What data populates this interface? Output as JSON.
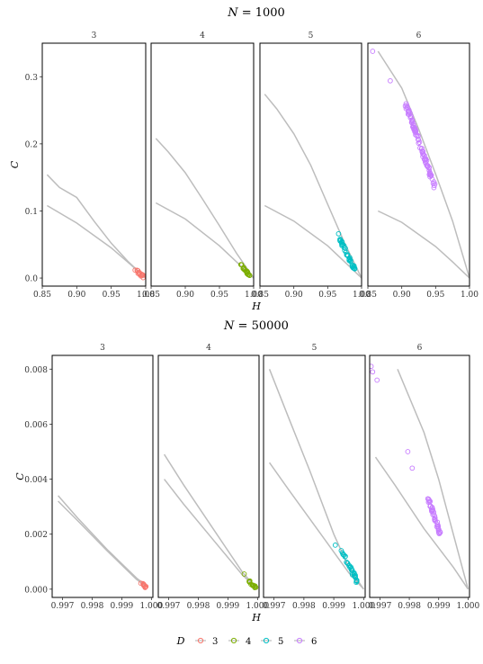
{
  "chart_data": [
    {
      "type": "scatter",
      "title": "N = 1000",
      "title_parts": {
        "var": "N",
        "rest": " = 1000"
      },
      "xlabel": "H",
      "ylabel": "C",
      "xlim": [
        0.85,
        1.0
      ],
      "ylim": [
        -0.012,
        0.35
      ],
      "xticks": [
        0.85,
        0.9,
        0.95,
        1.0
      ],
      "xtick_labels": [
        "0.85",
        "0.90",
        "0.95",
        "1.00"
      ],
      "yticks": [
        0.0,
        0.1,
        0.2,
        0.3
      ],
      "ytick_labels": [
        "0.0",
        "0.1",
        "0.2",
        "0.3"
      ],
      "panels": [
        {
          "label": "3",
          "series": "3",
          "upper_curve": [
            [
              0.857,
              0.154
            ],
            [
              0.875,
              0.135
            ],
            [
              0.9,
              0.12
            ],
            [
              0.925,
              0.085
            ],
            [
              0.95,
              0.052
            ],
            [
              0.975,
              0.024
            ],
            [
              1.0,
              0.0
            ]
          ],
          "lower_curve": [
            [
              0.857,
              0.108
            ],
            [
              0.9,
              0.082
            ],
            [
              0.95,
              0.045
            ],
            [
              0.975,
              0.023
            ],
            [
              1.0,
              0.0
            ]
          ],
          "points_band": {
            "x1": 0.986,
            "y1": 0.012,
            "x2": 0.997,
            "y2": 0.002,
            "n": 16
          }
        },
        {
          "label": "4",
          "series": "4",
          "upper_curve": [
            [
              0.857,
              0.208
            ],
            [
              0.875,
              0.188
            ],
            [
              0.9,
              0.157
            ],
            [
              0.925,
              0.118
            ],
            [
              0.95,
              0.078
            ],
            [
              0.975,
              0.037
            ],
            [
              1.0,
              0.0
            ]
          ],
          "lower_curve": [
            [
              0.857,
              0.112
            ],
            [
              0.9,
              0.088
            ],
            [
              0.95,
              0.048
            ],
            [
              0.975,
              0.024
            ],
            [
              1.0,
              0.0
            ]
          ],
          "points_band": {
            "x1": 0.982,
            "y1": 0.02,
            "x2": 0.995,
            "y2": 0.001,
            "n": 22
          }
        },
        {
          "label": "5",
          "series": "5",
          "upper_curve": [
            [
              0.857,
              0.274
            ],
            [
              0.875,
              0.252
            ],
            [
              0.9,
              0.215
            ],
            [
              0.925,
              0.168
            ],
            [
              0.95,
              0.11
            ],
            [
              0.975,
              0.052
            ],
            [
              1.0,
              0.0
            ]
          ],
          "lower_curve": [
            [
              0.857,
              0.108
            ],
            [
              0.9,
              0.085
            ],
            [
              0.95,
              0.048
            ],
            [
              0.975,
              0.024
            ],
            [
              1.0,
              0.0
            ]
          ],
          "points_band": {
            "x1": 0.968,
            "y1": 0.058,
            "x2": 0.99,
            "y2": 0.012,
            "n": 40
          },
          "extra_points": [
            [
              0.966,
              0.066
            ]
          ]
        },
        {
          "label": "6",
          "series": "6",
          "upper_curve": [
            [
              0.865,
              0.338
            ],
            [
              0.9,
              0.283
            ],
            [
              0.925,
              0.222
            ],
            [
              0.95,
              0.155
            ],
            [
              0.975,
              0.085
            ],
            [
              1.0,
              0.0
            ]
          ],
          "lower_curve": [
            [
              0.865,
              0.1
            ],
            [
              0.9,
              0.083
            ],
            [
              0.95,
              0.047
            ],
            [
              0.975,
              0.024
            ],
            [
              1.0,
              0.0
            ]
          ],
          "points_band": {
            "x1": 0.905,
            "y1": 0.262,
            "x2": 0.949,
            "y2": 0.135,
            "n": 90
          },
          "extra_points": [
            [
              0.857,
              0.338
            ],
            [
              0.883,
              0.294
            ]
          ]
        }
      ]
    },
    {
      "type": "scatter",
      "title": "N = 50000",
      "title_parts": {
        "var": "N",
        "rest": " = 50000"
      },
      "xlabel": "H",
      "ylabel": "C",
      "xlim": [
        0.99665,
        1.00005
      ],
      "ylim": [
        -0.0003,
        0.0085
      ],
      "xticks": [
        0.997,
        0.998,
        0.999,
        1.0
      ],
      "xtick_labels": [
        "0.997",
        "0.998",
        "0.999",
        "1.000"
      ],
      "yticks": [
        0.0,
        0.002,
        0.004,
        0.006,
        0.008
      ],
      "ytick_labels": [
        "0.000",
        "0.002",
        "0.004",
        "0.006",
        "0.008"
      ],
      "panels": [
        {
          "label": "3",
          "series": "3",
          "upper_curve": [
            [
              0.99685,
              0.0034
            ],
            [
              0.9975,
              0.0026
            ],
            [
              0.9985,
              0.00145
            ],
            [
              0.9995,
              0.0004
            ],
            [
              0.9998,
              0.00015
            ]
          ],
          "lower_curve": [
            [
              0.99685,
              0.0032
            ],
            [
              0.9975,
              0.0025
            ],
            [
              0.9985,
              0.0014
            ],
            [
              0.9995,
              0.00035
            ],
            [
              0.9998,
              0.00012
            ]
          ],
          "points_band": {
            "x1": 0.99965,
            "y1": 0.00022,
            "x2": 0.99985,
            "y2": 5e-05,
            "n": 10
          }
        },
        {
          "label": "4",
          "series": "4",
          "upper_curve": [
            [
              0.99685,
              0.0049
            ],
            [
              0.9975,
              0.0038
            ],
            [
              0.9985,
              0.0022
            ],
            [
              0.9995,
              0.0006
            ],
            [
              1.0,
              0.0
            ]
          ],
          "lower_curve": [
            [
              0.99685,
              0.004
            ],
            [
              0.9975,
              0.0031
            ],
            [
              0.9985,
              0.0018
            ],
            [
              0.9995,
              0.0005
            ],
            [
              1.0,
              0.0
            ]
          ],
          "points_band": {
            "x1": 0.99965,
            "y1": 0.00032,
            "x2": 0.99995,
            "y2": 5e-05,
            "n": 14
          },
          "extra_points": [
            [
              0.99955,
              0.00055
            ]
          ]
        },
        {
          "label": "5",
          "series": "5",
          "upper_curve": [
            [
              0.99685,
              0.008
            ],
            [
              0.9975,
              0.0062
            ],
            [
              0.9982,
              0.0043
            ],
            [
              0.999,
              0.002
            ],
            [
              0.9995,
              0.0008
            ],
            [
              1.0,
              0.0
            ]
          ],
          "lower_curve": [
            [
              0.99685,
              0.0046
            ],
            [
              0.9975,
              0.0036
            ],
            [
              0.9985,
              0.0021
            ],
            [
              0.9995,
              0.0006
            ],
            [
              1.0,
              0.0
            ]
          ],
          "points_band": {
            "x1": 0.9993,
            "y1": 0.0013,
            "x2": 0.9998,
            "y2": 0.00025,
            "n": 30
          },
          "extra_points": [
            [
              0.99905,
              0.0016
            ],
            [
              0.99925,
              0.0014
            ]
          ]
        },
        {
          "label": "6",
          "series": "6",
          "upper_curve": [
            [
              0.9976,
              0.008
            ],
            [
              0.9985,
              0.0057
            ],
            [
              0.999,
              0.004
            ],
            [
              0.9995,
              0.002
            ],
            [
              1.0,
              0.0
            ]
          ],
          "lower_curve": [
            [
              0.99685,
              0.0048
            ],
            [
              0.9975,
              0.0038
            ],
            [
              0.9985,
              0.0022
            ],
            [
              0.9995,
              0.0008
            ],
            [
              1.0,
              0.0
            ]
          ],
          "points_band": {
            "x1": 0.99865,
            "y1": 0.0033,
            "x2": 0.99905,
            "y2": 0.002,
            "n": 40
          },
          "extra_points": [
            [
              0.9967,
              0.0081
            ],
            [
              0.99675,
              0.0079
            ],
            [
              0.9969,
              0.0076
            ],
            [
              0.99795,
              0.005
            ],
            [
              0.9981,
              0.0044
            ]
          ]
        }
      ]
    }
  ],
  "legend": {
    "title": "D",
    "position": "bottom",
    "items": [
      {
        "label": "3",
        "color": "#F8766D"
      },
      {
        "label": "4",
        "color": "#7CAE00"
      },
      {
        "label": "5",
        "color": "#00BFC4"
      },
      {
        "label": "6",
        "color": "#C77CFF"
      }
    ]
  },
  "colors": {
    "curve": "#bdbdbd",
    "axis": "#000000"
  }
}
